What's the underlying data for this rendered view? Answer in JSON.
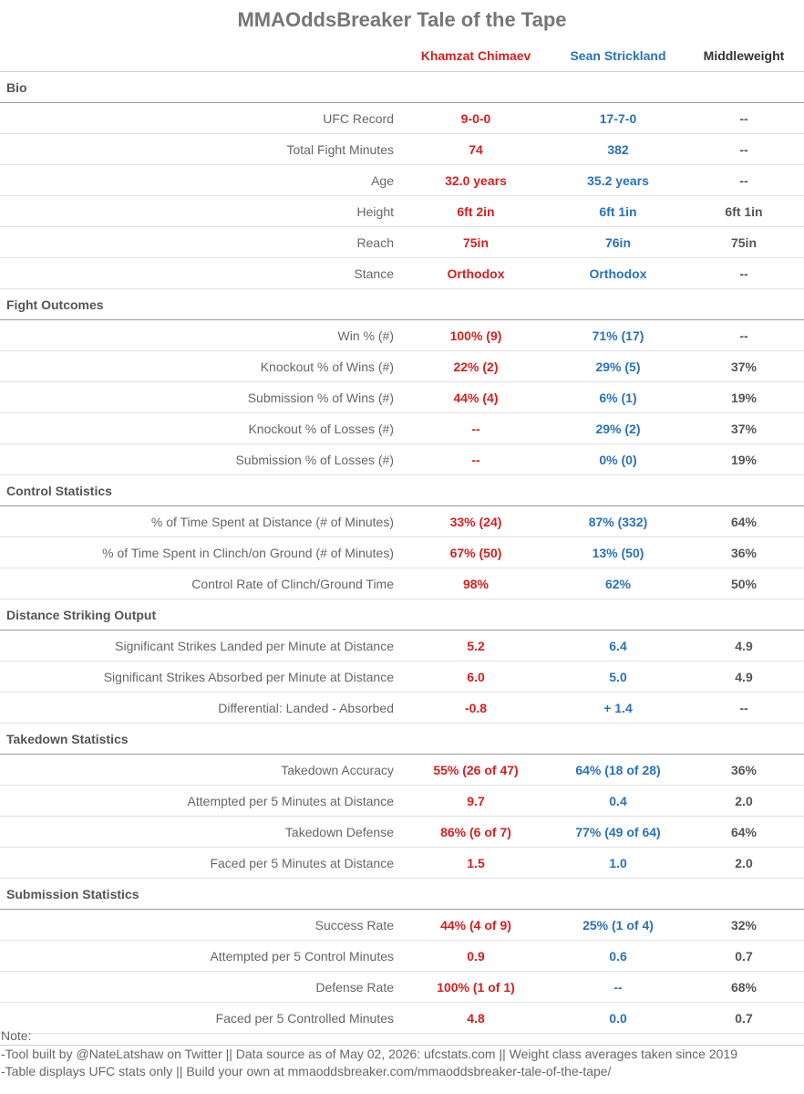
{
  "title": "MMAOddsBreaker Tale of the Tape",
  "columns": {
    "fighter1": "Khamzat Chimaev",
    "fighter2": "Sean Strickland",
    "weight_class": "Middleweight"
  },
  "colors": {
    "fighter1": "#d41f1f",
    "fighter2": "#2a72b8"
  },
  "sections": [
    {
      "title": "Bio",
      "rows": [
        {
          "label": "UFC Record",
          "f1": "9-0-0",
          "f2": "17-7-0",
          "avg": "--"
        },
        {
          "label": "Total Fight Minutes",
          "f1": "74",
          "f2": "382",
          "avg": "--"
        },
        {
          "label": "Age",
          "f1": "32.0 years",
          "f2": "35.2 years",
          "avg": "--"
        },
        {
          "label": "Height",
          "f1": "6ft 2in",
          "f2": "6ft 1in",
          "avg": "6ft 1in"
        },
        {
          "label": "Reach",
          "f1": "75in",
          "f2": "76in",
          "avg": "75in"
        },
        {
          "label": "Stance",
          "f1": "Orthodox",
          "f2": "Orthodox",
          "avg": "--"
        }
      ]
    },
    {
      "title": "Fight Outcomes",
      "rows": [
        {
          "label": "Win % (#)",
          "f1": "100% (9)",
          "f2": "71% (17)",
          "avg": "--"
        },
        {
          "label": "Knockout % of Wins (#)",
          "f1": "22% (2)",
          "f2": "29% (5)",
          "avg": "37%"
        },
        {
          "label": "Submission % of Wins (#)",
          "f1": "44% (4)",
          "f2": "6% (1)",
          "avg": "19%"
        },
        {
          "label": "Knockout % of Losses (#)",
          "f1": "--",
          "f2": "29% (2)",
          "avg": "37%"
        },
        {
          "label": "Submission % of Losses (#)",
          "f1": "--",
          "f2": "0% (0)",
          "avg": "19%"
        }
      ]
    },
    {
      "title": "Control Statistics",
      "rows": [
        {
          "label": "% of Time Spent at Distance (# of Minutes)",
          "f1": "33% (24)",
          "f2": "87% (332)",
          "avg": "64%"
        },
        {
          "label": "% of Time Spent in Clinch/on Ground (# of Minutes)",
          "f1": "67% (50)",
          "f2": "13% (50)",
          "avg": "36%"
        },
        {
          "label": "Control Rate of Clinch/Ground Time",
          "f1": "98%",
          "f2": "62%",
          "avg": "50%"
        }
      ]
    },
    {
      "title": "Distance Striking Output",
      "rows": [
        {
          "label": "Significant Strikes Landed per Minute at Distance",
          "f1": "5.2",
          "f2": "6.4",
          "avg": "4.9"
        },
        {
          "label": "Significant Strikes Absorbed per Minute at Distance",
          "f1": "6.0",
          "f2": "5.0",
          "avg": "4.9"
        },
        {
          "label": "Differential: Landed - Absorbed",
          "f1": "-0.8",
          "f2": "+ 1.4",
          "avg": "--"
        }
      ]
    },
    {
      "title": "Takedown Statistics",
      "rows": [
        {
          "label": "Takedown Accuracy",
          "f1": "55% (26 of 47)",
          "f2": "64% (18 of 28)",
          "avg": "36%"
        },
        {
          "label": "Attempted per 5 Minutes at Distance",
          "f1": "9.7",
          "f2": "0.4",
          "avg": "2.0"
        },
        {
          "label": "Takedown Defense",
          "f1": "86% (6 of 7)",
          "f2": "77% (49 of 64)",
          "avg": "64%"
        },
        {
          "label": "Faced per 5 Minutes at Distance",
          "f1": "1.5",
          "f2": "1.0",
          "avg": "2.0"
        }
      ]
    },
    {
      "title": "Submission Statistics",
      "rows": [
        {
          "label": "Success Rate",
          "f1": "44% (4 of 9)",
          "f2": "25% (1 of 4)",
          "avg": "32%"
        },
        {
          "label": "Attempted per 5 Control Minutes",
          "f1": "0.9",
          "f2": "0.6",
          "avg": "0.7"
        },
        {
          "label": "Defense Rate",
          "f1": "100% (1 of 1)",
          "f2": "--",
          "avg": "68%"
        },
        {
          "label": "Faced per 5 Controlled Minutes",
          "f1": "4.8",
          "f2": "0.0",
          "avg": "0.7"
        }
      ]
    }
  ],
  "notes": [
    "Note:",
    "-Tool built by @NateLatshaw on Twitter || Data source as of May 02, 2026: ufcstats.com || Weight class averages taken since 2019",
    "-Table displays UFC stats only || Build your own at mmaoddsbreaker.com/mmaoddsbreaker-tale-of-the-tape/"
  ]
}
